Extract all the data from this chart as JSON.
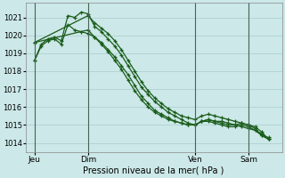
{
  "title": "Pression niveau de la mer( hPa )",
  "bg_color": "#cce8e8",
  "grid_color": "#aacccc",
  "line_color": "#1a5c1a",
  "ylim": [
    1013.5,
    1021.8
  ],
  "yticks": [
    1014,
    1015,
    1016,
    1017,
    1018,
    1019,
    1020,
    1021
  ],
  "day_labels": [
    "Jeu",
    "Dim",
    "Ven",
    "Sam"
  ],
  "day_positions": [
    4,
    28,
    76,
    100
  ],
  "xlim": [
    0,
    115
  ],
  "series1_x": [
    4,
    7,
    10,
    13,
    16,
    19,
    22,
    25,
    28,
    31,
    34,
    37,
    40,
    43,
    46,
    49,
    52,
    55,
    58,
    61,
    64,
    67,
    70,
    73,
    76,
    79,
    82,
    85,
    88,
    91,
    94,
    97,
    100,
    103,
    106,
    109
  ],
  "series1_y": [
    1018.6,
    1019.5,
    1019.8,
    1019.9,
    1019.7,
    1021.1,
    1021.0,
    1021.3,
    1021.2,
    1020.5,
    1020.2,
    1019.8,
    1019.4,
    1018.9,
    1018.3,
    1017.7,
    1017.1,
    1016.7,
    1016.3,
    1016.0,
    1015.7,
    1015.5,
    1015.3,
    1015.1,
    1015.0,
    1015.2,
    1015.3,
    1015.2,
    1015.1,
    1015.0,
    1015.0,
    1015.1,
    1015.0,
    1014.8,
    1014.4,
    1014.2
  ],
  "series2_x": [
    4,
    7,
    10,
    13,
    16,
    19,
    22,
    25,
    28,
    31,
    34,
    37,
    40,
    43,
    46,
    49,
    52,
    55,
    58,
    61,
    64,
    67,
    70,
    73,
    76,
    79,
    82,
    85,
    88,
    91,
    94,
    97,
    100,
    103,
    106,
    109
  ],
  "series2_y": [
    1018.6,
    1019.4,
    1019.7,
    1019.8,
    1019.5,
    1020.6,
    1020.3,
    1020.2,
    1020.1,
    1019.9,
    1019.6,
    1019.2,
    1018.8,
    1018.3,
    1017.8,
    1017.2,
    1016.6,
    1016.2,
    1015.8,
    1015.6,
    1015.4,
    1015.2,
    1015.1,
    1015.0,
    1015.0,
    1015.2,
    1015.2,
    1015.1,
    1015.0,
    1014.9,
    1014.9,
    1015.0,
    1014.9,
    1014.7,
    1014.4,
    1014.3
  ],
  "series3_x": [
    4,
    28,
    31,
    34,
    37,
    40,
    43,
    46,
    49,
    52,
    55,
    58,
    61,
    64,
    67,
    70,
    73,
    76,
    79,
    82,
    85,
    88,
    91,
    94,
    97,
    100,
    103,
    106,
    109
  ],
  "series3_y": [
    1019.6,
    1021.1,
    1020.7,
    1020.4,
    1020.1,
    1019.7,
    1019.2,
    1018.6,
    1018.0,
    1017.4,
    1016.9,
    1016.5,
    1016.2,
    1015.9,
    1015.7,
    1015.5,
    1015.4,
    1015.3,
    1015.5,
    1015.6,
    1015.5,
    1015.4,
    1015.3,
    1015.2,
    1015.1,
    1015.0,
    1014.9,
    1014.6,
    1014.2
  ],
  "series4_x": [
    4,
    28,
    31,
    34,
    37,
    40,
    43,
    46,
    49,
    52,
    55,
    58,
    61,
    64,
    67,
    70,
    73,
    76,
    79,
    82,
    85,
    88,
    91,
    94,
    97,
    100,
    103,
    106,
    109
  ],
  "series4_y": [
    1019.6,
    1020.3,
    1019.9,
    1019.5,
    1019.1,
    1018.6,
    1018.1,
    1017.5,
    1016.9,
    1016.4,
    1016.0,
    1015.7,
    1015.5,
    1015.3,
    1015.2,
    1015.1,
    1015.0,
    1015.0,
    1015.2,
    1015.3,
    1015.2,
    1015.2,
    1015.1,
    1015.0,
    1014.9,
    1014.8,
    1014.7,
    1014.5,
    1014.2
  ],
  "vline_positions": [
    28,
    76,
    100
  ]
}
